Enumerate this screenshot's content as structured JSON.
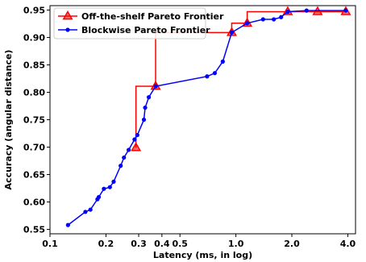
{
  "chart_data": {
    "type": "line",
    "xlabel": "Latency (ms, in log)",
    "ylabel": "Accuracy (angular distance)",
    "x_scale": "log",
    "xlim": [
      0.1,
      4.4
    ],
    "ylim": [
      0.542,
      0.958
    ],
    "x_ticks": [
      {
        "value": 0.1,
        "label": "0.1"
      },
      {
        "value": 0.2,
        "label": "0.2"
      },
      {
        "value": 0.3,
        "label": "0.3"
      },
      {
        "value": 0.4,
        "label": "0.4"
      },
      {
        "value": 0.5,
        "label": "0.5"
      },
      {
        "value": 1.0,
        "label": "1.0"
      },
      {
        "value": 2.0,
        "label": "2.0"
      },
      {
        "value": 4.0,
        "label": "4.0"
      }
    ],
    "y_ticks": [
      {
        "value": 0.55,
        "label": "0.55"
      },
      {
        "value": 0.6,
        "label": "0.60"
      },
      {
        "value": 0.65,
        "label": "0.65"
      },
      {
        "value": 0.7,
        "label": "0.70"
      },
      {
        "value": 0.75,
        "label": "0.75"
      },
      {
        "value": 0.8,
        "label": "0.80"
      },
      {
        "value": 0.85,
        "label": "0.85"
      },
      {
        "value": 0.9,
        "label": "0.90"
      },
      {
        "value": 0.95,
        "label": "0.95"
      }
    ],
    "grid": false,
    "legend_position": "top-left",
    "series": [
      {
        "name": "Off-the-shelf Pareto Frontier",
        "color": "#ff0000",
        "marker": "triangle",
        "step": true,
        "points": [
          {
            "x": 0.29,
            "y": 0.699
          },
          {
            "x": 0.37,
            "y": 0.811
          },
          {
            "x": 0.95,
            "y": 0.909
          },
          {
            "x": 1.15,
            "y": 0.926
          },
          {
            "x": 1.9,
            "y": 0.947
          },
          {
            "x": 2.75,
            "y": 0.947
          },
          {
            "x": 3.9,
            "y": 0.947
          }
        ]
      },
      {
        "name": "Blockwise Pareto Frontier",
        "color": "#0000ff",
        "marker": "circle",
        "step": false,
        "points": [
          {
            "x": 0.125,
            "y": 0.558
          },
          {
            "x": 0.155,
            "y": 0.582
          },
          {
            "x": 0.165,
            "y": 0.586
          },
          {
            "x": 0.18,
            "y": 0.605
          },
          {
            "x": 0.183,
            "y": 0.609
          },
          {
            "x": 0.195,
            "y": 0.624
          },
          {
            "x": 0.21,
            "y": 0.627
          },
          {
            "x": 0.22,
            "y": 0.637
          },
          {
            "x": 0.24,
            "y": 0.666
          },
          {
            "x": 0.25,
            "y": 0.681
          },
          {
            "x": 0.265,
            "y": 0.695
          },
          {
            "x": 0.285,
            "y": 0.714
          },
          {
            "x": 0.295,
            "y": 0.722
          },
          {
            "x": 0.32,
            "y": 0.75
          },
          {
            "x": 0.325,
            "y": 0.772
          },
          {
            "x": 0.34,
            "y": 0.791
          },
          {
            "x": 0.37,
            "y": 0.811
          },
          {
            "x": 0.7,
            "y": 0.829
          },
          {
            "x": 0.77,
            "y": 0.835
          },
          {
            "x": 0.85,
            "y": 0.856
          },
          {
            "x": 0.95,
            "y": 0.909
          },
          {
            "x": 1.15,
            "y": 0.926
          },
          {
            "x": 1.4,
            "y": 0.933
          },
          {
            "x": 1.6,
            "y": 0.933
          },
          {
            "x": 1.75,
            "y": 0.937
          },
          {
            "x": 1.9,
            "y": 0.947
          },
          {
            "x": 2.4,
            "y": 0.949
          },
          {
            "x": 3.9,
            "y": 0.949
          }
        ]
      }
    ]
  }
}
